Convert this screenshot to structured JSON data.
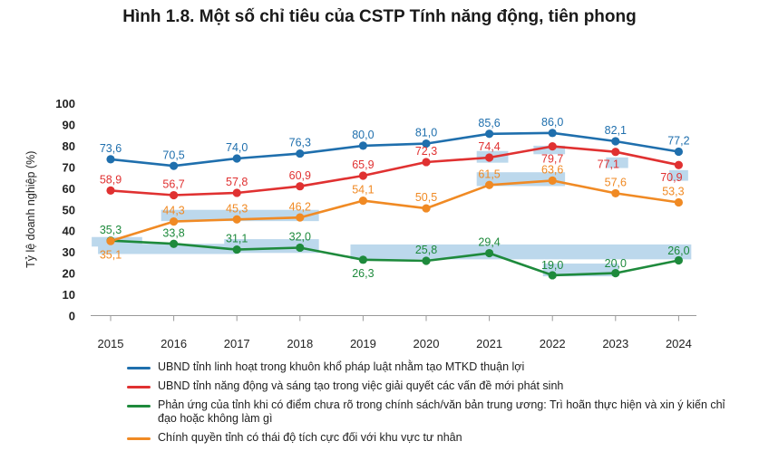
{
  "chart_data": {
    "type": "line",
    "title": "Hình 1.8. Một số chỉ tiêu của CSTP Tính năng động, tiên phong",
    "ylabel": "Tỷ lệ doanh nghiệp (%)",
    "xlabel": "",
    "ylim": [
      0,
      100
    ],
    "yticks": [
      "0",
      "10",
      "20",
      "30",
      "40",
      "50",
      "60",
      "70",
      "80",
      "90",
      "100"
    ],
    "x": [
      "2015",
      "2016",
      "2017",
      "2018",
      "2019",
      "2020",
      "2021",
      "2022",
      "2023",
      "2024"
    ],
    "grid": false,
    "legend_position": "bottom",
    "series": [
      {
        "name": "UBND tỉnh linh hoạt trong khuôn khổ pháp luật nhằm tạo MTKD thuận lợi",
        "color": "#1f6fad",
        "values": [
          73.6,
          70.5,
          74.0,
          76.3,
          80.0,
          81.0,
          85.6,
          86.0,
          82.1,
          77.2
        ],
        "labels": [
          "73,6",
          "70,5",
          "74,0",
          "76,3",
          "80,0",
          "81,0",
          "85,6",
          "86,0",
          "82,1",
          "77,2"
        ]
      },
      {
        "name": "UBND tỉnh năng động và sáng tạo trong việc giải quyết các vấn đề mới phát sinh",
        "color": "#e03131",
        "values": [
          58.9,
          56.7,
          57.8,
          60.9,
          65.9,
          72.3,
          74.4,
          79.7,
          77.1,
          70.9
        ],
        "labels": [
          "58,9",
          "56,7",
          "57,8",
          "60,9",
          "65,9",
          "72,3",
          "74,4",
          "79,7",
          "77,1",
          "70,9"
        ]
      },
      {
        "name": "Phản ứng của tỉnh khi có điểm chưa rõ trong chính sách/văn bản trung ương: Trì hoãn thực hiện và xin ý kiến chỉ đạo hoặc không làm gì",
        "color": "#1e8a3c",
        "values": [
          35.3,
          33.8,
          31.1,
          32.0,
          26.3,
          25.8,
          29.4,
          19.0,
          20.0,
          26.0
        ],
        "labels": [
          "35,3",
          "33,8",
          "31,1",
          "32,0",
          "26,3",
          "25,8",
          "29,4",
          "19,0",
          "20,0",
          "26,0"
        ]
      },
      {
        "name": "Chính quyền tỉnh có thái độ tích cực đối với khu vực tư nhân",
        "color": "#f08a24",
        "values": [
          35.1,
          44.3,
          45.3,
          46.2,
          54.1,
          50.5,
          61.5,
          63.6,
          57.6,
          53.3
        ],
        "labels": [
          "35,1",
          "44,3",
          "45,3",
          "46,2",
          "54,1",
          "50,5",
          "61,5",
          "63,6",
          "57,6",
          "53,3"
        ]
      }
    ]
  }
}
